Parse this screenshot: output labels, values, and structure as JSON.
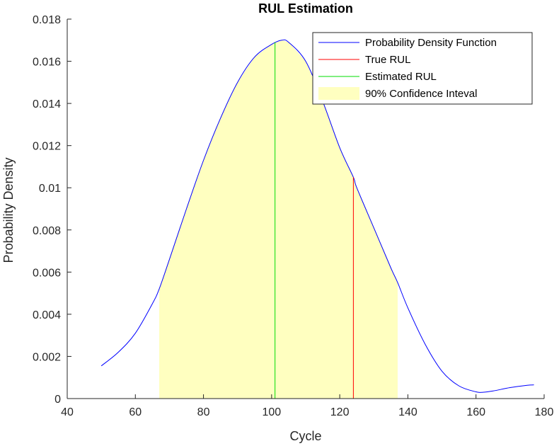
{
  "chart_data": {
    "type": "line",
    "title": "RUL Estimation",
    "xlabel": "Cycle",
    "ylabel": "Probability Density",
    "xlim": [
      40,
      180
    ],
    "ylim": [
      0,
      0.018
    ],
    "xticks": [
      40,
      60,
      80,
      100,
      120,
      140,
      160,
      180
    ],
    "yticks": [
      0,
      0.002,
      0.004,
      0.006,
      0.008,
      0.01,
      0.012,
      0.014,
      0.016,
      0.018
    ],
    "xtick_labels": [
      "40",
      "60",
      "80",
      "100",
      "120",
      "140",
      "160",
      "180"
    ],
    "ytick_labels": [
      "0",
      "0.002",
      "0.004",
      "0.006",
      "0.008",
      "0.01",
      "0.012",
      "0.014",
      "0.016",
      "0.018"
    ],
    "grid": false,
    "legend_position": "top-right",
    "series": [
      {
        "name": "Probability Density Function",
        "color": "#0000ff",
        "x": [
          50,
          55,
          60,
          65,
          67,
          70,
          75,
          80,
          85,
          90,
          95,
          100,
          103,
          105,
          110,
          115,
          120,
          124,
          125,
          130,
          135,
          137,
          140,
          145,
          150,
          155,
          160,
          162,
          165,
          170,
          175,
          177
        ],
        "y": [
          0.00155,
          0.0022,
          0.0031,
          0.0045,
          0.0052,
          0.0066,
          0.009,
          0.0113,
          0.0133,
          0.015,
          0.0162,
          0.0168,
          0.017,
          0.0169,
          0.016,
          0.0141,
          0.0119,
          0.0105,
          0.01,
          0.0081,
          0.0062,
          0.0055,
          0.0043,
          0.0026,
          0.0013,
          0.0006,
          0.00032,
          0.0003,
          0.00036,
          0.00052,
          0.00063,
          0.00065
        ]
      },
      {
        "name": "True RUL",
        "color": "#ff0000",
        "x": [
          124,
          124
        ],
        "y": [
          0,
          0.0105
        ]
      },
      {
        "name": "Estimated RUL",
        "color": "#00dd00",
        "x": [
          101,
          101
        ],
        "y": [
          0,
          0.0169
        ]
      }
    ],
    "confidence_interval": {
      "name": "90% Confidence Inteval",
      "color": "#ffffc0",
      "x_range": [
        67,
        137
      ]
    }
  }
}
